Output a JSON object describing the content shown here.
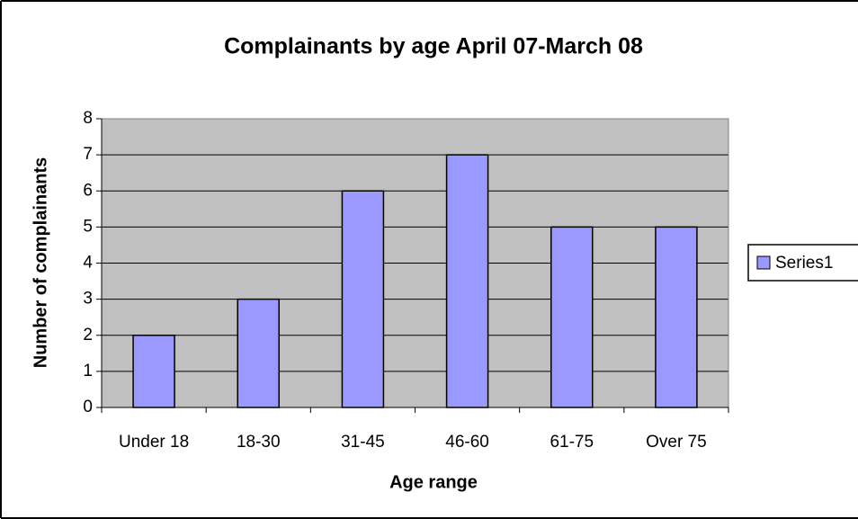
{
  "chart_data": {
    "type": "bar",
    "title": "Complainants by age April 07-March 08",
    "x_label": "Age range",
    "y_label": "Number of complainants",
    "categories": [
      "Under 18",
      "18-30",
      "31-45",
      "46-60",
      "61-75",
      "Over 75"
    ],
    "series": [
      {
        "name": "Series1",
        "color": "#9999ff",
        "values": [
          2,
          3,
          6,
          7,
          5,
          5
        ]
      }
    ],
    "ylim": [
      0,
      8
    ],
    "yticks": [
      0,
      1,
      2,
      3,
      4,
      5,
      6,
      7,
      8
    ],
    "grid": true,
    "legend": "right"
  }
}
